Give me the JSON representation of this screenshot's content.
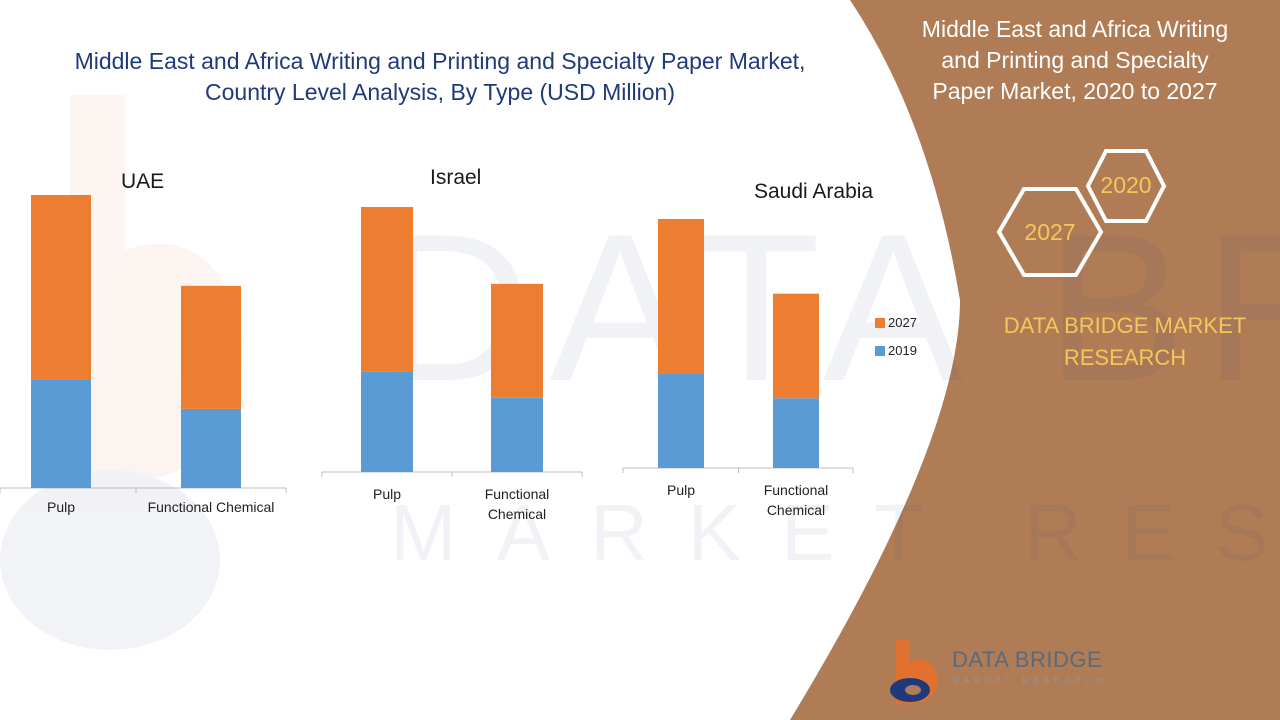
{
  "title_lines": [
    "Middle East and Africa Writing and Printing and Specialty Paper Market,",
    "Country Level Analysis, By Type (USD Million)"
  ],
  "side_panel": {
    "title_lines": [
      "Middle East and Africa Writing",
      "and Printing and Specialty",
      "Paper Market, 2020 to 2027"
    ],
    "hex_2020": "2020",
    "hex_2027": "2027",
    "brand_lines": [
      "DATA BRIDGE MARKET",
      "RESEARCH"
    ],
    "bg_color": "#b07c56",
    "accent_color": "#f7c65a"
  },
  "logo": {
    "name": "DATA BRIDGE",
    "sub": "MARKET RESEARCH",
    "icon": "data-bridge-logo-icon"
  },
  "legend": [
    {
      "name": "2027",
      "color": "#ed7d31"
    },
    {
      "name": "2019",
      "color": "#5b9bd5"
    }
  ],
  "chart_data": [
    {
      "type": "bar",
      "stacked": true,
      "title": "UAE",
      "categories": [
        "Pulp",
        "Functional Chemical"
      ],
      "series": [
        {
          "name": "2019",
          "values": [
            37,
            27
          ]
        },
        {
          "name": "2027",
          "values": [
            63,
            42
          ]
        }
      ],
      "ylim": [
        0,
        100
      ]
    },
    {
      "type": "bar",
      "stacked": true,
      "title": "Israel",
      "categories": [
        "Pulp",
        "Functional Chemical"
      ],
      "series": [
        {
          "name": "2019",
          "values": [
            38,
            28
          ]
        },
        {
          "name": "2027",
          "values": [
            62,
            43
          ]
        }
      ],
      "ylim": [
        0,
        100
      ]
    },
    {
      "type": "bar",
      "stacked": true,
      "title": "Saudi Arabia",
      "categories": [
        "Pulp",
        "Functional Chemical"
      ],
      "series": [
        {
          "name": "2019",
          "values": [
            38,
            28
          ]
        },
        {
          "name": "2027",
          "values": [
            62,
            42
          ]
        }
      ],
      "ylim": [
        0,
        100
      ]
    }
  ]
}
